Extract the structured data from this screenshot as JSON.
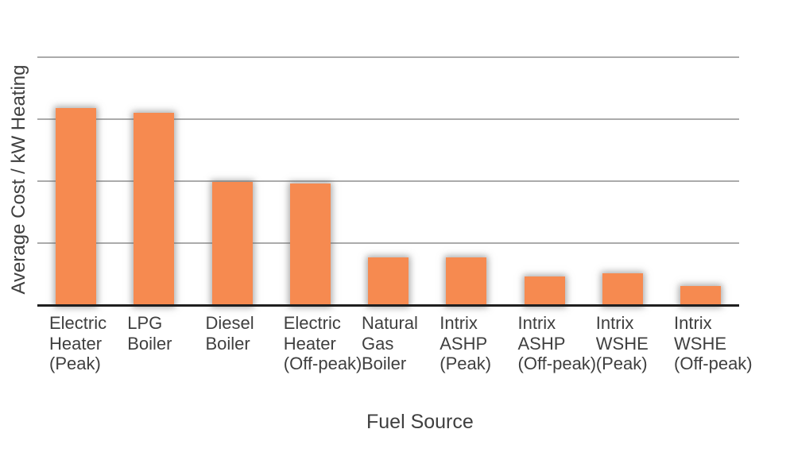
{
  "chart_data": {
    "type": "bar",
    "title": "",
    "xlabel": "Fuel Source",
    "ylabel": "Average Cost / kW Heating",
    "categories": [
      "Electric\nHeater\n(Peak)",
      "LPG\nBoiler",
      "Diesel\nBoiler",
      "Electric\nHeater\n(Off-peak)",
      "Natural\nGas\nBoiler",
      "Intrix\nASHP\n(Peak)",
      "Intrix\nASHP\n(Off-peak)",
      "Intrix\nWSHE\n(Peak)",
      "Intrix\nWSHE\n(Off-peak)"
    ],
    "values": [
      3.18,
      3.1,
      1.99,
      1.96,
      0.77,
      0.78,
      0.47,
      0.52,
      0.31
    ],
    "value_units": "relative (no y-axis tick labels shown)",
    "ylim": [
      0,
      4
    ],
    "gridline_values": [
      1,
      2,
      3,
      4
    ],
    "y_tick_labels": [],
    "grid": true,
    "legend": false,
    "colors": {
      "bar": "#F68A50",
      "gridline": "#ABABAB",
      "axis_line": "#1F1F1F",
      "text": "#3F3F3F"
    }
  }
}
